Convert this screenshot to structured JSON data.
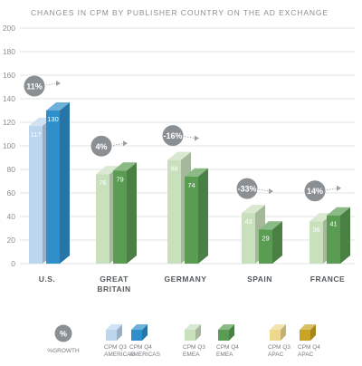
{
  "chart_data": {
    "type": "bar",
    "title": "CHANGES IN CPM BY PUBLISHER COUNTRY ON THE AD EXCHANGE",
    "ylim": [
      0,
      200
    ],
    "yticks": [
      0,
      20,
      40,
      60,
      80,
      100,
      120,
      140,
      160,
      180,
      200
    ],
    "grid": true,
    "categories": [
      "U.S.",
      "GREAT BRITAIN",
      "GERMANY",
      "SPAIN",
      "FRANCE"
    ],
    "groups": [
      {
        "label": "U.S.",
        "growth": "11%",
        "q3": 117,
        "q4": 130,
        "region": "AMERICAS"
      },
      {
        "label": "GREAT BRITAIN",
        "growth": "4%",
        "q3": 76,
        "q4": 79,
        "region": "EMEA"
      },
      {
        "label": "GERMANY",
        "growth": "-16%",
        "q3": 88,
        "q4": 74,
        "region": "EMEA"
      },
      {
        "label": "SPAIN",
        "growth": "-33%",
        "q3": 43,
        "q4": 29,
        "region": "EMEA"
      },
      {
        "label": "FRANCE",
        "growth": "14%",
        "q3": 36,
        "q4": 41,
        "region": "EMEA"
      }
    ],
    "colors": {
      "AMERICAS": {
        "q3": "#bcd6ee",
        "q4": "#2e8fcb"
      },
      "EMEA": {
        "q3": "#c9e0bd",
        "q4": "#5a9c52"
      },
      "APAC": {
        "q3": "#eed88c",
        "q4": "#c9a324"
      },
      "growth_badge": "#8a8f93"
    },
    "legend": {
      "placement": "bottom",
      "growth_symbol": "%",
      "growth_label": "%GROWTH",
      "items": [
        {
          "line1": "CPM Q3",
          "line2": "AMERICAS",
          "region": "AMERICAS",
          "quarter": "q3"
        },
        {
          "line1": "CPM Q4",
          "line2": "AMERICAS",
          "region": "AMERICAS",
          "quarter": "q4"
        },
        {
          "line1": "CPM Q3",
          "line2": "EMEA",
          "region": "EMEA",
          "quarter": "q3"
        },
        {
          "line1": "CPM Q4",
          "line2": "EMEA",
          "region": "EMEA",
          "quarter": "q4"
        },
        {
          "line1": "CPM Q3",
          "line2": "APAC",
          "region": "APAC",
          "quarter": "q3"
        },
        {
          "line1": "CPM Q4",
          "line2": "APAC",
          "region": "APAC",
          "quarter": "q4"
        }
      ]
    }
  }
}
